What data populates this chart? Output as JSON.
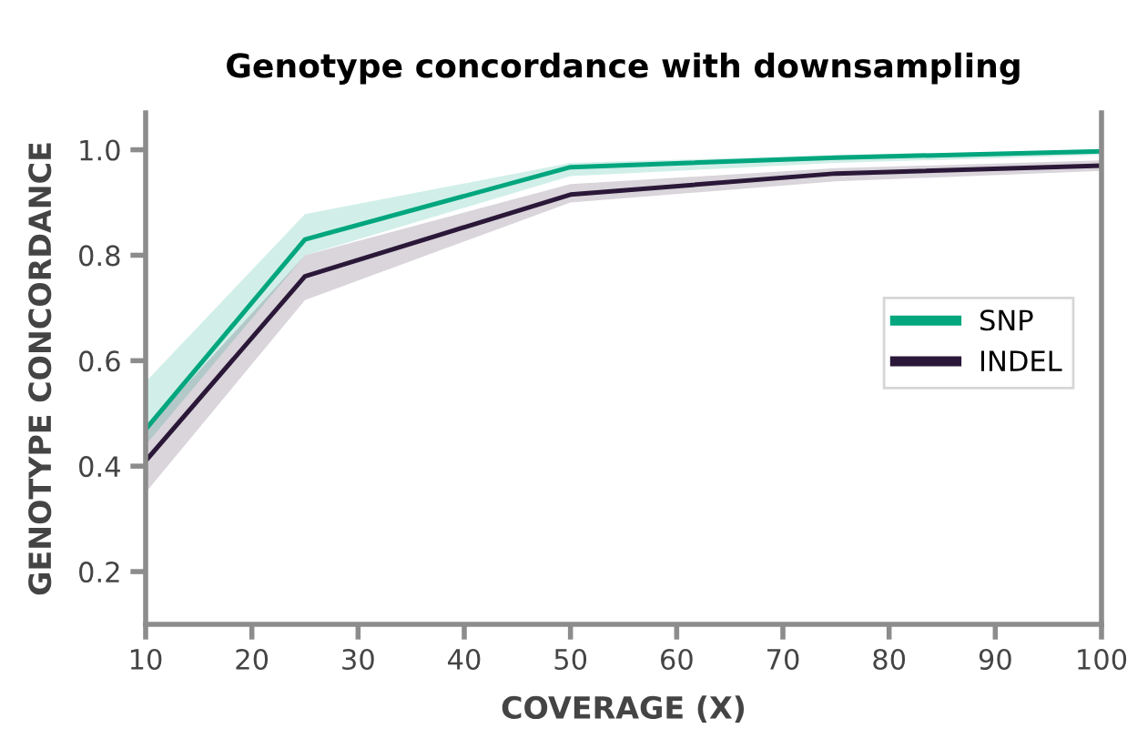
{
  "chart_data": {
    "type": "line",
    "title": "Genotype concordance with downsampling",
    "xlabel": "COVERAGE (X)",
    "ylabel": "GENOTYPE CONCORDANCE",
    "x": [
      10,
      25,
      50,
      75,
      100
    ],
    "series": [
      {
        "name": "SNP",
        "color": "#00a67e",
        "values": [
          0.47,
          0.83,
          0.967,
          0.985,
          0.997
        ],
        "lower": [
          0.44,
          0.8,
          0.95,
          0.975,
          0.99
        ],
        "upper": [
          0.56,
          0.878,
          0.975,
          0.99,
          1.0
        ]
      },
      {
        "name": "INDEL",
        "color": "#2b1838",
        "values": [
          0.41,
          0.76,
          0.915,
          0.955,
          0.97
        ],
        "lower": [
          0.35,
          0.715,
          0.9,
          0.94,
          0.96
        ],
        "upper": [
          0.47,
          0.8,
          0.935,
          0.965,
          0.98
        ]
      }
    ],
    "xlim": [
      10,
      100
    ],
    "ylim": [
      0.1,
      1.07
    ],
    "xticks": [
      10,
      20,
      30,
      40,
      50,
      60,
      70,
      80,
      90,
      100
    ],
    "yticks": [
      {
        "value": 0.2,
        "label": "0.2"
      },
      {
        "value": 0.4,
        "label": "0.4"
      },
      {
        "value": 0.6,
        "label": "0.6"
      },
      {
        "value": 0.8,
        "label": "0.8"
      },
      {
        "value": 1.0,
        "label": "1.0"
      }
    ],
    "grid": false,
    "legend": "right",
    "marker": "none",
    "line_style": "solid"
  }
}
